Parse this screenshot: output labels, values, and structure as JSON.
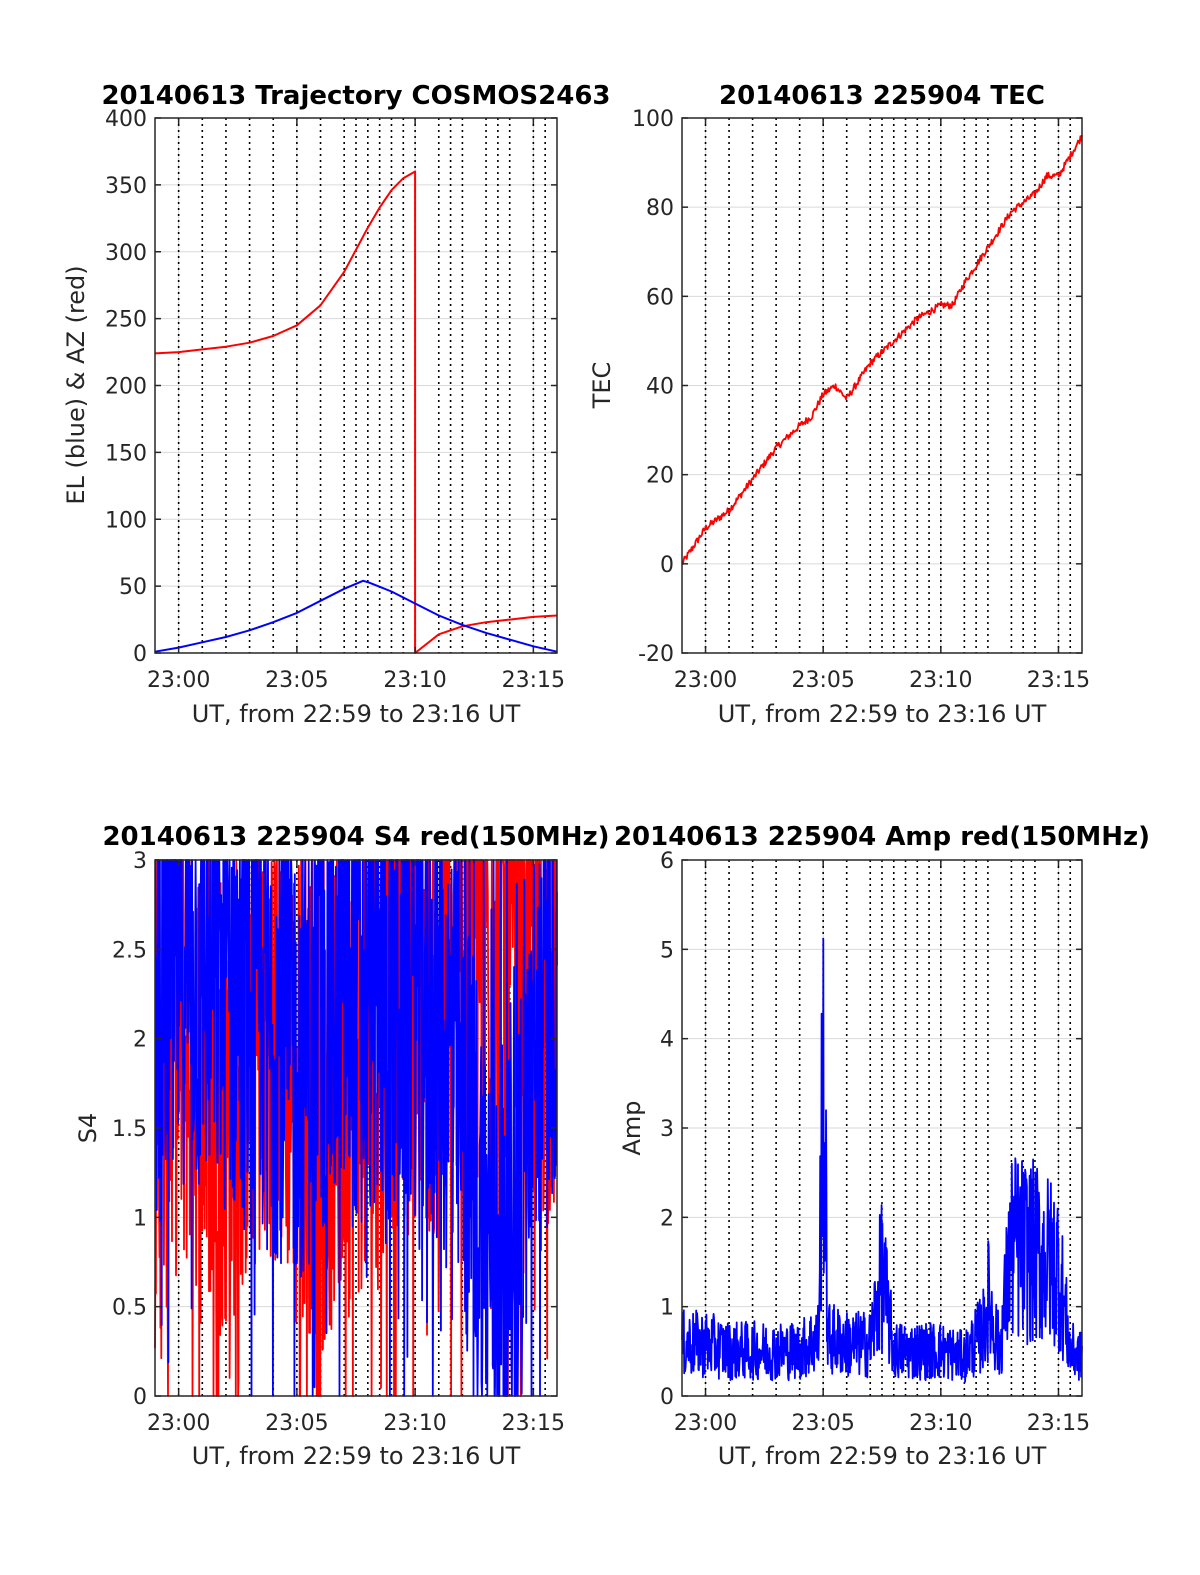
{
  "colors": {
    "red": "#ff0000",
    "blue": "#0000ff",
    "grid": "#d9d9d9",
    "dotted": "#000000",
    "axis": "#262626"
  },
  "dotted_minutes": [
    0,
    1,
    2,
    3,
    4,
    5,
    6,
    7,
    7.5,
    8,
    8.5,
    9,
    9.5,
    10,
    11,
    11.5,
    12,
    13,
    13.5,
    14,
    15,
    15.5,
    16
  ],
  "chart_data": [
    {
      "id": "trajectory",
      "type": "line",
      "title": "20140613 Trajectory COSMOS2463",
      "xlabel": "UT, from 22:59 to 23:16 UT",
      "ylabel": "EL (blue) & AZ (red)",
      "xlim": [
        "22:59",
        "23:16"
      ],
      "ylim": [
        0,
        400
      ],
      "xticks": [
        "23:00",
        "23:05",
        "23:10",
        "23:15"
      ],
      "yticks": [
        0,
        50,
        100,
        150,
        200,
        250,
        300,
        350,
        400
      ],
      "grid": true,
      "series": [
        {
          "color": "red",
          "x": [
            "22:59",
            "23:00",
            "23:01",
            "23:02",
            "23:03",
            "23:04",
            "23:05",
            "23:06",
            "23:07",
            "23:08",
            "23:08:30",
            "23:09",
            "23:09:30",
            "23:10",
            "23:10",
            "23:11",
            "23:12",
            "23:13",
            "23:14",
            "23:15",
            "23:16"
          ],
          "y": [
            224,
            225,
            227,
            229,
            232,
            237,
            245,
            260,
            285,
            318,
            333,
            346,
            355,
            360,
            0,
            14,
            20,
            23,
            25,
            27,
            28
          ]
        },
        {
          "color": "blue",
          "x": [
            "22:59",
            "23:00",
            "23:01",
            "23:02",
            "23:03",
            "23:04",
            "23:05",
            "23:06",
            "23:07",
            "23:07:48",
            "23:08",
            "23:09",
            "23:10",
            "23:11",
            "23:12",
            "23:13",
            "23:14",
            "23:15",
            "23:16"
          ],
          "y": [
            1,
            4,
            8,
            12,
            17,
            23,
            30,
            39,
            48,
            54,
            53,
            46,
            37,
            28,
            21,
            15,
            10,
            5,
            1
          ]
        }
      ]
    },
    {
      "id": "tec",
      "type": "line",
      "title": "20140613 225904 TEC",
      "xlabel": "UT, from 22:59 to 23:16 UT",
      "ylabel": "TEC",
      "xlim": [
        "22:59",
        "23:16"
      ],
      "ylim": [
        -20,
        100
      ],
      "xticks": [
        "23:00",
        "23:05",
        "23:10",
        "23:15"
      ],
      "yticks": [
        -20,
        0,
        20,
        40,
        60,
        80,
        100
      ],
      "grid": true,
      "series": [
        {
          "color": "red",
          "x": [
            "22:59",
            "23:00",
            "23:01",
            "23:02",
            "23:03",
            "23:04",
            "23:04:30",
            "23:05",
            "23:05:30",
            "23:06",
            "23:07",
            "23:08",
            "23:09",
            "23:10",
            "23:10:30",
            "23:11",
            "23:12",
            "23:13",
            "23:14",
            "23:14:30",
            "23:15",
            "23:16"
          ],
          "y": [
            0,
            8,
            12,
            19,
            26,
            31,
            33,
            38,
            40,
            37,
            45,
            50,
            55,
            58,
            58,
            63,
            71,
            79,
            83,
            87,
            87,
            96
          ]
        }
      ]
    },
    {
      "id": "s4",
      "type": "line",
      "title": "20140613 225904 S4 red(150MHz)",
      "xlabel": "UT, from 22:59 to 23:16 UT",
      "ylabel": "S4",
      "xlim": [
        "22:59",
        "23:16"
      ],
      "ylim": [
        0,
        3
      ],
      "xticks": [
        "23:00",
        "23:05",
        "23:10",
        "23:15"
      ],
      "yticks": [
        0,
        0.5,
        1,
        1.5,
        2,
        2.5,
        3
      ],
      "grid": true,
      "series": [
        {
          "color": "red",
          "x": [
            "22:59",
            "23:00",
            "23:01",
            "23:02",
            "23:03",
            "23:04",
            "23:05",
            "23:06",
            "23:07",
            "23:08",
            "23:09",
            "23:10",
            "23:11",
            "23:12",
            "23:13",
            "23:14",
            "23:15",
            "23:16"
          ],
          "y": [
            1.5,
            2.0,
            1.8,
            1.6,
            1.9,
            2.1,
            1.8,
            1.5,
            1.7,
            1.9,
            2.2,
            2.3,
            2.1,
            2.4,
            2.5,
            2.4,
            2.3,
            2.2
          ]
        },
        {
          "color": "blue",
          "x": [
            "22:59",
            "23:00",
            "23:01",
            "23:02",
            "23:03",
            "23:04",
            "23:05",
            "23:06",
            "23:07",
            "23:08",
            "23:09",
            "23:10",
            "23:11",
            "23:12",
            "23:13",
            "23:14",
            "23:15",
            "23:16"
          ],
          "y": [
            2.2,
            2.5,
            2.4,
            2.3,
            2.2,
            2.1,
            1.9,
            2.1,
            2.2,
            2.3,
            2.2,
            2.3,
            2.1,
            1.6,
            0.9,
            0.9,
            1.8,
            2.5
          ]
        }
      ]
    },
    {
      "id": "amp",
      "type": "line",
      "title": "20140613 225904 Amp red(150MHz)",
      "xlabel": "UT, from 22:59 to 23:16 UT",
      "ylabel": "Amp",
      "xlim": [
        "22:59",
        "23:16"
      ],
      "ylim": [
        0,
        6
      ],
      "xticks": [
        "23:00",
        "23:05",
        "23:10",
        "23:15"
      ],
      "yticks": [
        0,
        1,
        2,
        3,
        4,
        5,
        6
      ],
      "grid": true,
      "series": [
        {
          "color": "blue",
          "x": [
            "22:59",
            "23:00",
            "23:01",
            "23:02",
            "23:03",
            "23:04",
            "23:04:48",
            "23:05",
            "23:05:12",
            "23:06",
            "23:07",
            "23:07:30",
            "23:08",
            "23:09",
            "23:10",
            "23:11",
            "23:11:48",
            "23:12",
            "23:12:30",
            "23:13",
            "23:14",
            "23:15",
            "23:15:30",
            "23:16"
          ],
          "y": [
            0.8,
            0.8,
            0.7,
            0.7,
            0.7,
            0.7,
            0.9,
            5.4,
            0.9,
            0.8,
            0.8,
            1.9,
            0.7,
            0.7,
            0.7,
            0.6,
            1.0,
            1.5,
            0.7,
            2.3,
            2.2,
            2.0,
            0.7,
            0.6
          ]
        }
      ]
    }
  ]
}
